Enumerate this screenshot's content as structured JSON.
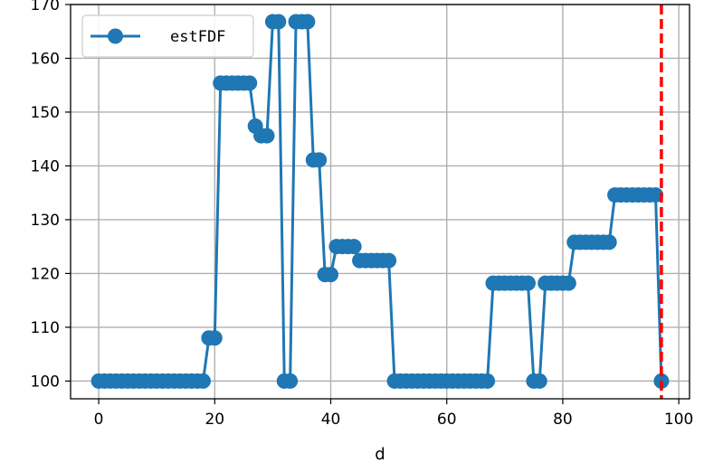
{
  "chart_data": {
    "type": "line",
    "xlabel": "d",
    "ylabel": "",
    "xlim": [
      -4.85,
      101.85
    ],
    "ylim": [
      96.7,
      170
    ],
    "xticks": [
      0,
      20,
      40,
      60,
      80,
      100
    ],
    "yticks": [
      100,
      110,
      120,
      130,
      140,
      150,
      160,
      170
    ],
    "grid": true,
    "legend": {
      "position": "top-left",
      "entries": [
        "estFDF"
      ]
    },
    "series": [
      {
        "name": "estFDF",
        "color": "#1f77b4",
        "marker": "circle",
        "x": [
          0,
          1,
          2,
          3,
          4,
          5,
          6,
          7,
          8,
          9,
          10,
          11,
          12,
          13,
          14,
          15,
          16,
          17,
          18,
          19,
          20,
          21,
          22,
          23,
          24,
          25,
          26,
          27,
          28,
          29,
          30,
          31,
          32,
          33,
          34,
          35,
          36,
          37,
          38,
          39,
          40,
          41,
          42,
          43,
          44,
          45,
          46,
          47,
          48,
          49,
          50,
          51,
          52,
          53,
          54,
          55,
          56,
          57,
          58,
          59,
          60,
          61,
          62,
          63,
          64,
          65,
          66,
          67,
          68,
          69,
          70,
          71,
          72,
          73,
          74,
          75,
          76,
          77,
          78,
          79,
          80,
          81,
          82,
          83,
          84,
          85,
          86,
          87,
          88,
          89,
          90,
          91,
          92,
          93,
          94,
          95,
          96,
          97
        ],
        "y": [
          100,
          100,
          100,
          100,
          100,
          100,
          100,
          100,
          100,
          100,
          100,
          100,
          100,
          100,
          100,
          100,
          100,
          100,
          100,
          108,
          108,
          155.4,
          155.4,
          155.4,
          155.4,
          155.4,
          155.4,
          147.4,
          145.6,
          145.6,
          166.8,
          166.8,
          100,
          100,
          166.8,
          166.8,
          166.8,
          141.1,
          141.1,
          119.8,
          119.8,
          125,
          125,
          125,
          125,
          122.4,
          122.4,
          122.4,
          122.4,
          122.4,
          122.4,
          100,
          100,
          100,
          100,
          100,
          100,
          100,
          100,
          100,
          100,
          100,
          100,
          100,
          100,
          100,
          100,
          100,
          118.2,
          118.2,
          118.2,
          118.2,
          118.2,
          118.2,
          118.2,
          100,
          100,
          118.2,
          118.2,
          118.2,
          118.2,
          118.2,
          125.8,
          125.8,
          125.8,
          125.8,
          125.8,
          125.8,
          125.8,
          134.6,
          134.6,
          134.6,
          134.6,
          134.6,
          134.6,
          134.6,
          134.6,
          100
        ]
      }
    ],
    "annotations": [
      {
        "type": "vline",
        "x": 97,
        "color": "#ff0000",
        "style": "dashed"
      }
    ]
  }
}
